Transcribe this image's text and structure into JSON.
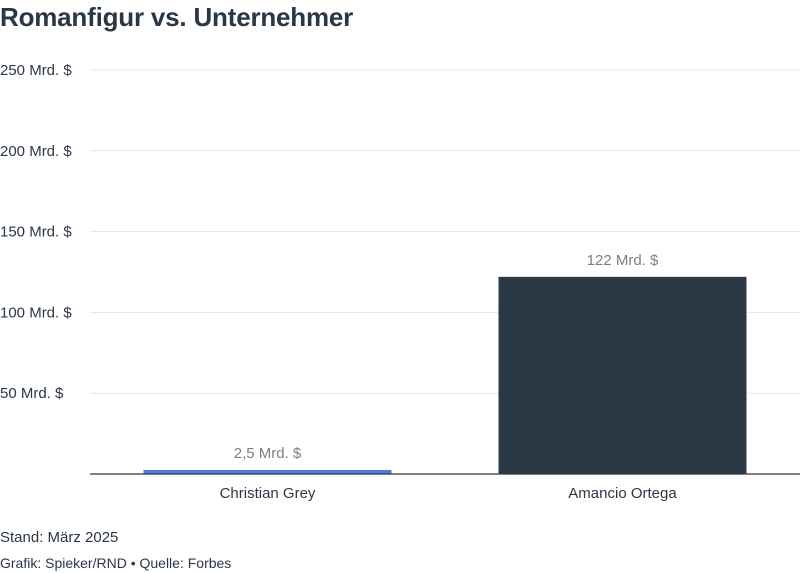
{
  "title": "Romanfigur vs. Unternehmer",
  "footer": {
    "stand": "Stand: März 2025",
    "credit": "Grafik: Spieker/RND • Quelle: Forbes"
  },
  "colors": {
    "text": "#2a3745",
    "grid": "#e3e6ea",
    "bar_highlight": "#4f7cdb",
    "bar_main": "#2b3845",
    "data_label": "#7a8088"
  },
  "chart_data": {
    "type": "bar",
    "title": "Romanfigur vs. Unternehmer",
    "categories": [
      "Christian Grey",
      "Amancio Ortega"
    ],
    "values": [
      2.5,
      122
    ],
    "data_labels": [
      "2,5 Mrd. $",
      "122 Mrd. $"
    ],
    "bar_colors": [
      "#4f7cdb",
      "#2b3845"
    ],
    "yticks": [
      50,
      100,
      150,
      200,
      250
    ],
    "ytick_labels": [
      "50 Mrd. $",
      "100 Mrd. $",
      "150 Mrd. $",
      "200 Mrd. $",
      "250 Mrd. $"
    ],
    "ylim": [
      0,
      250
    ],
    "grid": true,
    "xlabel": "",
    "ylabel": ""
  }
}
